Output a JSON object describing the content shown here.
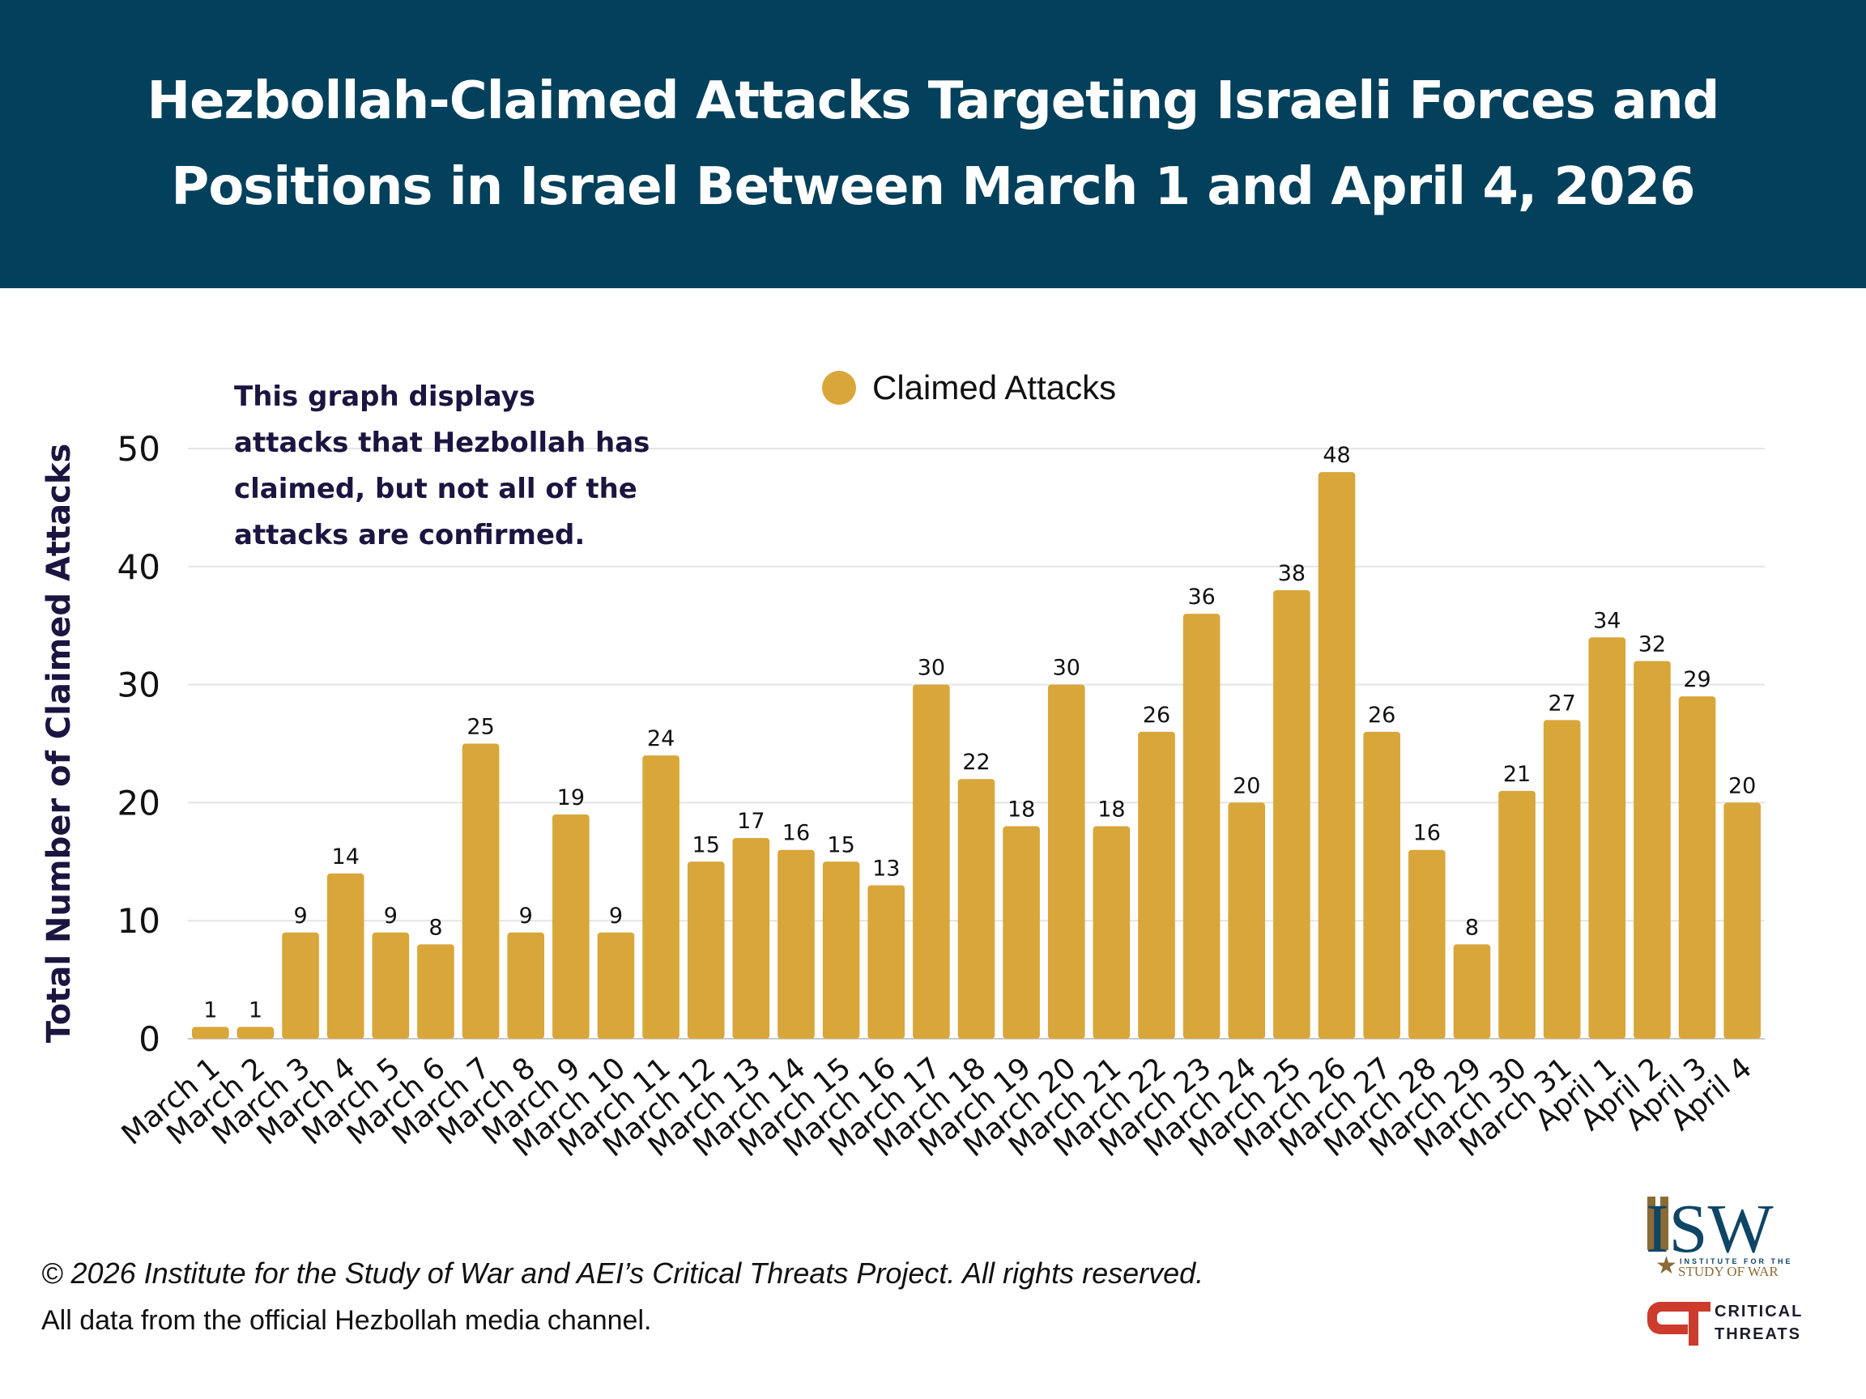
{
  "header": {
    "title": "Hezbollah-Claimed Attacks Targeting Israeli Forces and Positions in Israel Between March 1 and April 4, 2026",
    "background": "#02405b"
  },
  "note": "This graph displays attacks that Hezbollah has claimed, but not all of the attacks are confirmed.",
  "footer": {
    "copyright": "© 2026 Institute for the Study of War and AEI’s Critical Threats Project. All rights reserved.",
    "source": "All data from the official Hezbollah media channel."
  },
  "logos": {
    "isw": "ISW",
    "isw_sub1": "INSTITUTE FOR THE",
    "isw_sub2": "STUDY OF WAR",
    "ct1": "CRITICAL",
    "ct2": "THREATS"
  },
  "chart_data": {
    "type": "bar",
    "title": "Hezbollah-Claimed Attacks Targeting Israeli Forces and Positions in Israel Between March 1 and April 4, 2026",
    "xlabel": "",
    "ylabel": "Total Number of Claimed Attacks",
    "ylim": [
      0,
      50
    ],
    "yticks": [
      0,
      10,
      20,
      30,
      40,
      50
    ],
    "grid": true,
    "legend": "top-center",
    "bar_color": "#d9a63a",
    "series": [
      {
        "name": "Claimed Attacks",
        "values": [
          1,
          1,
          9,
          14,
          9,
          8,
          25,
          9,
          19,
          9,
          24,
          15,
          17,
          16,
          15,
          13,
          30,
          22,
          18,
          30,
          18,
          26,
          36,
          20,
          38,
          48,
          26,
          16,
          8,
          21,
          27,
          34,
          32,
          29,
          20
        ]
      }
    ],
    "categories": [
      "March 1",
      "March 2",
      "March 3",
      "March 4",
      "March 5",
      "March 6",
      "March 7",
      "March 8",
      "March 9",
      "March 10",
      "March 11",
      "March 12",
      "March 13",
      "March 14",
      "March 15",
      "March 16",
      "March 17",
      "March 18",
      "March 19",
      "March 20",
      "March 21",
      "March 22",
      "March 23",
      "March 24",
      "March 25",
      "March 26",
      "March 27",
      "March 28",
      "March 29",
      "March 30",
      "March 31",
      "April 1",
      "April 2",
      "April 3",
      "April 4"
    ]
  }
}
